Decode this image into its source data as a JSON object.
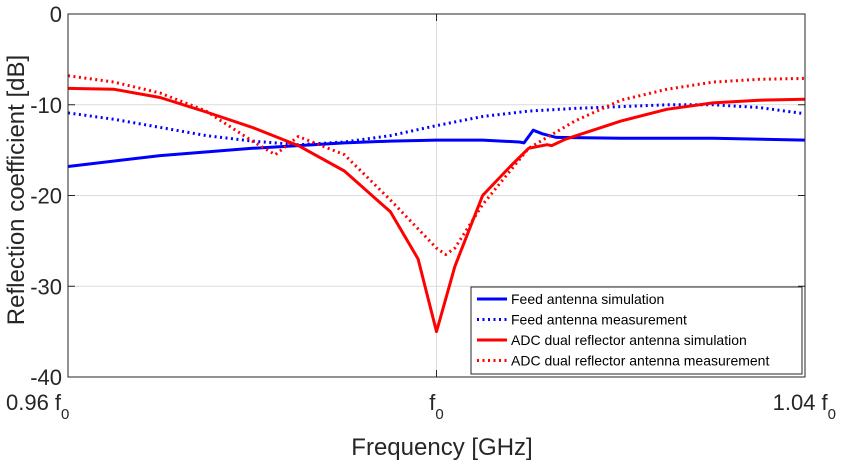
{
  "chart_data": {
    "type": "line",
    "title": "",
    "xlabel": "Frequency [GHz]",
    "ylabel": "Reflection coefficient [dB]",
    "xlim": [
      0.96,
      1.04
    ],
    "ylim": [
      -40,
      0
    ],
    "grid": true,
    "x_ticks": [
      {
        "value": 0.96,
        "main": "0.96 f",
        "sub": "0"
      },
      {
        "value": 1.0,
        "main": "f",
        "sub": "0"
      },
      {
        "value": 1.04,
        "main": "1.04 f",
        "sub": "0"
      }
    ],
    "y_ticks": [
      {
        "value": 0,
        "label": "0"
      },
      {
        "value": -10,
        "label": "-10"
      },
      {
        "value": -20,
        "label": "-20"
      },
      {
        "value": -30,
        "label": "-30"
      },
      {
        "value": -40,
        "label": "-40"
      }
    ],
    "legend_position": "bottom-right",
    "series": [
      {
        "name": "Feed antenna simulation",
        "color": "#0000ff",
        "style": "solid",
        "x": [
          0.96,
          0.97,
          0.98,
          0.985,
          0.99,
          0.995,
          1.0,
          1.005,
          1.009,
          1.0095,
          1.0105,
          1.0115,
          1.013,
          1.02,
          1.03,
          1.04
        ],
        "y": [
          -16.8,
          -15.6,
          -14.8,
          -14.5,
          -14.2,
          -14.0,
          -13.9,
          -13.9,
          -14.1,
          -14.2,
          -12.8,
          -13.2,
          -13.6,
          -13.7,
          -13.7,
          -13.9
        ]
      },
      {
        "name": "Feed antenna measurement",
        "color": "#0000ff",
        "style": "dotted",
        "x": [
          0.96,
          0.965,
          0.97,
          0.975,
          0.98,
          0.985,
          0.99,
          0.995,
          1.0,
          1.005,
          1.01,
          1.015,
          1.02,
          1.025,
          1.03,
          1.035,
          1.04
        ],
        "y": [
          -10.9,
          -11.6,
          -12.5,
          -13.4,
          -14.0,
          -14.4,
          -14.1,
          -13.4,
          -12.3,
          -11.3,
          -10.7,
          -10.4,
          -10.2,
          -10.0,
          -10.0,
          -10.3,
          -11.0
        ]
      },
      {
        "name": "ADC dual reflector antenna simulation",
        "color": "#ff0000",
        "style": "solid",
        "x": [
          0.96,
          0.965,
          0.97,
          0.975,
          0.98,
          0.985,
          0.99,
          0.995,
          0.998,
          1.0,
          1.002,
          1.005,
          1.008,
          1.01,
          1.012,
          1.0125,
          1.014,
          1.02,
          1.025,
          1.03,
          1.035,
          1.04
        ],
        "y": [
          -8.2,
          -8.3,
          -9.2,
          -10.8,
          -12.5,
          -14.5,
          -17.3,
          -21.8,
          -27.0,
          -35.0,
          -27.8,
          -20.0,
          -16.8,
          -14.8,
          -14.4,
          -14.5,
          -13.8,
          -11.8,
          -10.5,
          -9.8,
          -9.5,
          -9.4
        ]
      },
      {
        "name": "ADC dual reflector antenna measurement",
        "color": "#ff0000",
        "style": "dotted",
        "x": [
          0.96,
          0.965,
          0.97,
          0.975,
          0.98,
          0.9825,
          0.985,
          0.99,
          0.995,
          1.0,
          1.001,
          1.002,
          1.005,
          1.01,
          1.015,
          1.02,
          1.025,
          1.03,
          1.035,
          1.04
        ],
        "y": [
          -6.8,
          -7.5,
          -8.7,
          -10.7,
          -14.0,
          -15.5,
          -13.5,
          -15.5,
          -20.5,
          -25.8,
          -26.5,
          -25.8,
          -21.0,
          -14.8,
          -11.8,
          -9.5,
          -8.3,
          -7.5,
          -7.2,
          -7.1
        ]
      }
    ]
  }
}
